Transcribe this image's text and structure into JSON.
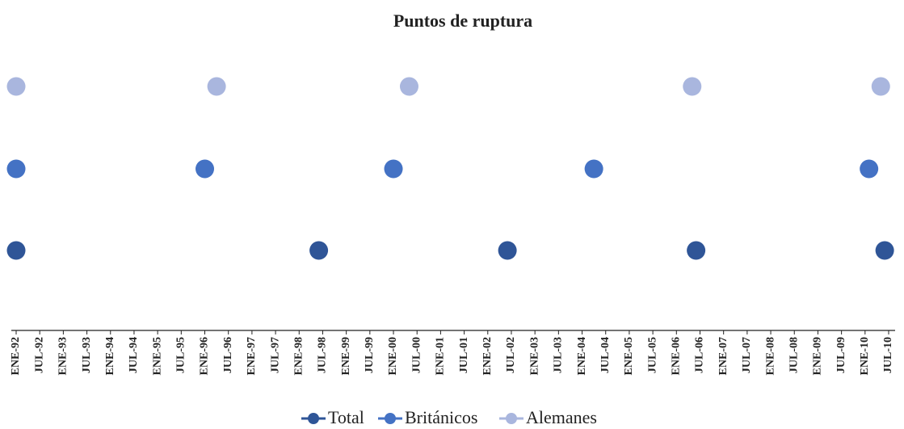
{
  "chart_data": {
    "type": "scatter",
    "title": "Puntos de ruptura",
    "xlim": [
      "1992-01",
      "2010-07"
    ],
    "xticks": [
      {
        "value": "1992-01",
        "label": "ENE-92"
      },
      {
        "value": "1992-07",
        "label": "JUL-92"
      },
      {
        "value": "1993-01",
        "label": "ENE-93"
      },
      {
        "value": "1993-07",
        "label": "JUL-93"
      },
      {
        "value": "1994-01",
        "label": "ENE-94"
      },
      {
        "value": "1994-07",
        "label": "JUL-94"
      },
      {
        "value": "1995-01",
        "label": "ENE-95"
      },
      {
        "value": "1995-07",
        "label": "JUL-95"
      },
      {
        "value": "1996-01",
        "label": "ENE-96"
      },
      {
        "value": "1996-07",
        "label": "JUL-96"
      },
      {
        "value": "1997-01",
        "label": "ENE-97"
      },
      {
        "value": "1997-07",
        "label": "JUL-97"
      },
      {
        "value": "1998-01",
        "label": "ENE-98"
      },
      {
        "value": "1998-07",
        "label": "JUL-98"
      },
      {
        "value": "1999-01",
        "label": "ENE-99"
      },
      {
        "value": "1999-07",
        "label": "JUL-99"
      },
      {
        "value": "2000-01",
        "label": "ENE-00"
      },
      {
        "value": "2000-07",
        "label": "JUL-00"
      },
      {
        "value": "2001-01",
        "label": "ENE-01"
      },
      {
        "value": "2001-07",
        "label": "JUL-01"
      },
      {
        "value": "2002-01",
        "label": "ENE-02"
      },
      {
        "value": "2002-07",
        "label": "JUL-02"
      },
      {
        "value": "2003-01",
        "label": "ENE-03"
      },
      {
        "value": "2003-07",
        "label": "JUL-03"
      },
      {
        "value": "2004-01",
        "label": "ENE-04"
      },
      {
        "value": "2004-07",
        "label": "JUL-04"
      },
      {
        "value": "2005-01",
        "label": "ENE-05"
      },
      {
        "value": "2005-07",
        "label": "JUL-05"
      },
      {
        "value": "2006-01",
        "label": "ENE-06"
      },
      {
        "value": "2006-07",
        "label": "JUL-06"
      },
      {
        "value": "2007-01",
        "label": "ENE-07"
      },
      {
        "value": "2007-07",
        "label": "JUL-07"
      },
      {
        "value": "2008-01",
        "label": "ENE-08"
      },
      {
        "value": "2008-07",
        "label": "JUL-08"
      },
      {
        "value": "2009-01",
        "label": "ENE-09"
      },
      {
        "value": "2009-07",
        "label": "JUL-09"
      },
      {
        "value": "2010-01",
        "label": "ENE-10"
      },
      {
        "value": "2010-07",
        "label": "JUL-10"
      }
    ],
    "series": [
      {
        "name": "Total",
        "color": "#2f5597",
        "x": [
          "1992-01",
          "1998-06",
          "2002-06",
          "2006-06",
          "2010-06"
        ]
      },
      {
        "name": "Británicos",
        "color": "#4472c4",
        "x": [
          "1992-01",
          "1996-01",
          "2000-01",
          "2004-04",
          "2010-02"
        ]
      },
      {
        "name": "Alemanes",
        "color": "#a9b6de",
        "x": [
          "1992-01",
          "1996-04",
          "2000-05",
          "2006-05",
          "2010-05"
        ]
      }
    ],
    "legend": "bottom"
  }
}
